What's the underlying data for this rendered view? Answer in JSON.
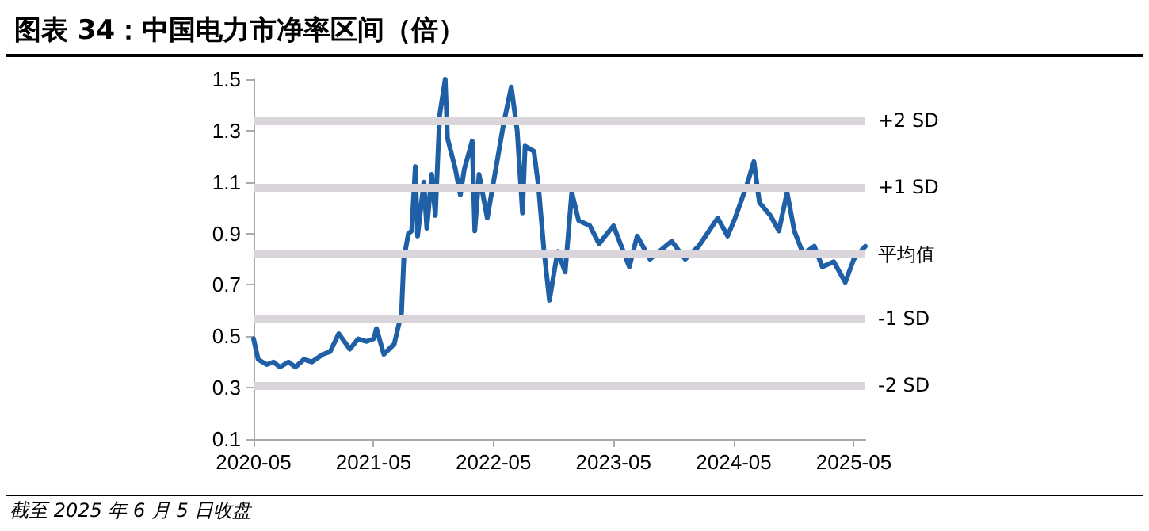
{
  "chart_data": {
    "type": "line",
    "title": "图表 34：中国电力市净率区间（倍）",
    "annotations": [
      "截至 2025 年 6 月 5 日收盘"
    ],
    "x": [
      "2020-05-01",
      "2020-05-15",
      "2020-06-10",
      "2020-07-01",
      "2020-07-20",
      "2020-08-15",
      "2020-09-05",
      "2020-10-01",
      "2020-10-25",
      "2020-11-28",
      "2020-12-20",
      "2021-01-15",
      "2021-02-18",
      "2021-03-15",
      "2021-04-10",
      "2021-05-01",
      "2021-05-10",
      "2021-06-01",
      "2021-07-03",
      "2021-07-25",
      "2021-08-01",
      "2021-08-15",
      "2021-08-25",
      "2021-09-05",
      "2021-09-12",
      "2021-10-01",
      "2021-10-10",
      "2021-10-25",
      "2021-11-05",
      "2021-11-18",
      "2021-12-05",
      "2021-12-12",
      "2022-01-05",
      "2022-01-20",
      "2022-02-01",
      "2022-02-25",
      "2022-03-05",
      "2022-03-18",
      "2022-04-12",
      "2022-05-05",
      "2022-06-01",
      "2022-06-24",
      "2022-07-12",
      "2022-07-28",
      "2022-08-05",
      "2022-09-01",
      "2022-09-15",
      "2022-10-01",
      "2022-10-18",
      "2022-11-12",
      "2022-12-05",
      "2022-12-25",
      "2023-01-15",
      "2023-02-18",
      "2023-03-18",
      "2023-05-01",
      "2023-06-18",
      "2023-07-12",
      "2023-08-20",
      "2023-10-25",
      "2023-12-05",
      "2024-01-15",
      "2024-03-13",
      "2024-04-12",
      "2024-05-05",
      "2024-06-10",
      "2024-07-01",
      "2024-07-18",
      "2024-08-20",
      "2024-09-15",
      "2024-10-10",
      "2024-11-01",
      "2024-11-28",
      "2025-01-01",
      "2025-01-25",
      "2025-03-01",
      "2025-04-05",
      "2025-05-01",
      "2025-06-05"
    ],
    "series": [
      {
        "color": "#1f5fa6",
        "values": [
          0.49,
          0.41,
          0.39,
          0.4,
          0.38,
          0.4,
          0.38,
          0.41,
          0.4,
          0.43,
          0.44,
          0.51,
          0.45,
          0.49,
          0.48,
          0.49,
          0.53,
          0.43,
          0.47,
          0.59,
          0.8,
          0.9,
          0.91,
          1.16,
          0.89,
          1.1,
          0.92,
          1.13,
          0.97,
          1.36,
          1.5,
          1.27,
          1.15,
          1.05,
          1.15,
          1.26,
          0.91,
          1.13,
          0.96,
          1.13,
          1.33,
          1.47,
          1.3,
          0.98,
          1.24,
          1.22,
          1.08,
          0.84,
          0.64,
          0.83,
          0.75,
          1.06,
          0.95,
          0.93,
          0.86,
          0.93,
          0.77,
          0.89,
          0.8,
          0.87,
          0.8,
          0.85,
          0.96,
          0.89,
          0.96,
          1.09,
          1.18,
          1.02,
          0.97,
          0.91,
          1.06,
          0.91,
          0.82,
          0.85,
          0.77,
          0.79,
          0.71,
          0.8,
          0.85
        ]
      }
    ],
    "xlim": [
      "2020-05-01",
      "2025-06-05"
    ],
    "xticks": [
      "2020-05",
      "2021-05",
      "2022-05",
      "2023-05",
      "2024-05",
      "2025-05"
    ],
    "ylim": [
      0.1,
      1.5
    ],
    "yticks": [
      0.1,
      0.3,
      0.5,
      0.7,
      0.9,
      1.1,
      1.3,
      1.5
    ],
    "ref_lines": [
      {
        "axis": "y",
        "value": 1.34,
        "label": "+2 SD",
        "color": "#d9d5da"
      },
      {
        "axis": "y",
        "value": 1.08,
        "label": "+1 SD",
        "color": "#d9d5da"
      },
      {
        "axis": "y",
        "value": 0.82,
        "label": "平均值",
        "color": "#d9d5da"
      },
      {
        "axis": "y",
        "value": 0.57,
        "label": "-1 SD",
        "color": "#d9d5da"
      },
      {
        "axis": "y",
        "value": 0.31,
        "label": "-2 SD",
        "color": "#d9d5da"
      }
    ],
    "grid": false,
    "marker": "none",
    "line_style": "solid"
  }
}
